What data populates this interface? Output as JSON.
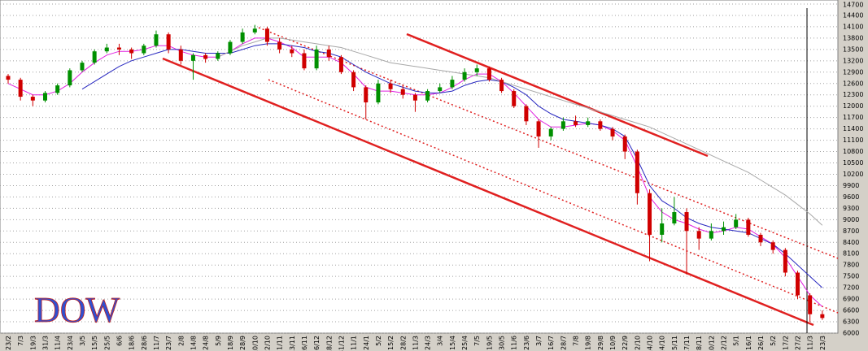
{
  "chart_data": {
    "type": "candlestick",
    "title": "DOW",
    "categories": [
      "23/2",
      "7/3",
      "19/3",
      "31/3",
      "11/4",
      "23/4",
      "3/5",
      "15/5",
      "25/5",
      "6/6",
      "18/6",
      "28/6",
      "11/7",
      "23/7",
      "2/8",
      "14/8",
      "24/8",
      "5/9",
      "18/9",
      "28/9",
      "10/10",
      "22/10",
      "1/11",
      "13/11",
      "26/11",
      "6/12",
      "18/12",
      "31/12",
      "11/1",
      "24/1",
      "5/2",
      "15/2",
      "28/2",
      "11/3",
      "24/3",
      "3/4",
      "15/4",
      "25/4",
      "7/5",
      "19/5",
      "30/5",
      "11/6",
      "23/6",
      "3/7",
      "16/7",
      "28/7",
      "7/8",
      "19/8",
      "29/8",
      "10/9",
      "22/9",
      "2/10",
      "14/10",
      "24/10",
      "5/11",
      "17/11",
      "28/11",
      "10/12",
      "22/12",
      "5/1",
      "16/1",
      "26/1",
      "5/2",
      "17/2",
      "27/2",
      "11/3",
      "23/3"
    ],
    "candles": [
      [
        12800,
        12850,
        12600,
        12700
      ],
      [
        12700,
        12750,
        12150,
        12250
      ],
      [
        12250,
        12300,
        12000,
        12150
      ],
      [
        12150,
        12400,
        12100,
        12350
      ],
      [
        12350,
        12600,
        12300,
        12550
      ],
      [
        12550,
        13000,
        12500,
        12950
      ],
      [
        12950,
        13200,
        12900,
        13150
      ],
      [
        13150,
        13500,
        13100,
        13450
      ],
      [
        13450,
        13650,
        13400,
        13550
      ],
      [
        13550,
        13650,
        13350,
        13500
      ],
      [
        13500,
        13550,
        13250,
        13400
      ],
      [
        13400,
        13650,
        13350,
        13600
      ],
      [
        13600,
        14000,
        13550,
        13900
      ],
      [
        13900,
        13950,
        13400,
        13500
      ],
      [
        13500,
        13600,
        13100,
        13200
      ],
      [
        13200,
        13400,
        12700,
        13350
      ],
      [
        13350,
        13400,
        13150,
        13250
      ],
      [
        13250,
        13450,
        13200,
        13400
      ],
      [
        13400,
        13750,
        13350,
        13700
      ],
      [
        13700,
        14050,
        13650,
        13950
      ],
      [
        13950,
        14150,
        13900,
        14050
      ],
      [
        14050,
        14100,
        13600,
        13700
      ],
      [
        13700,
        13800,
        13400,
        13500
      ],
      [
        13500,
        13600,
        13300,
        13400
      ],
      [
        13400,
        13500,
        12950,
        13000
      ],
      [
        13000,
        13600,
        12950,
        13500
      ],
      [
        13500,
        13600,
        13200,
        13300
      ],
      [
        13300,
        13350,
        12850,
        12900
      ],
      [
        12900,
        12950,
        12400,
        12500
      ],
      [
        12500,
        12550,
        11650,
        12100
      ],
      [
        12100,
        12700,
        12050,
        12600
      ],
      [
        12600,
        12700,
        12350,
        12450
      ],
      [
        12450,
        12550,
        12200,
        12300
      ],
      [
        12300,
        12350,
        11850,
        12150
      ],
      [
        12150,
        12450,
        12100,
        12400
      ],
      [
        12400,
        12600,
        12350,
        12500
      ],
      [
        12500,
        12800,
        12450,
        12700
      ],
      [
        12700,
        13000,
        12650,
        12900
      ],
      [
        12900,
        13100,
        12800,
        13000
      ],
      [
        13000,
        13050,
        12650,
        12700
      ],
      [
        12700,
        12750,
        12350,
        12400
      ],
      [
        12400,
        12450,
        11950,
        12000
      ],
      [
        12000,
        12050,
        11500,
        11600
      ],
      [
        11600,
        11650,
        10900,
        11200
      ],
      [
        11200,
        11450,
        11100,
        11400
      ],
      [
        11400,
        11700,
        11350,
        11600
      ],
      [
        11600,
        11750,
        11450,
        11500
      ],
      [
        11500,
        11700,
        11450,
        11600
      ],
      [
        11600,
        11650,
        11350,
        11400
      ],
      [
        11400,
        11450,
        11100,
        11200
      ],
      [
        11200,
        11250,
        10600,
        10800
      ],
      [
        10800,
        10850,
        9400,
        9700
      ],
      [
        9700,
        9800,
        7900,
        8600
      ],
      [
        8600,
        9300,
        8400,
        8900
      ],
      [
        8900,
        9600,
        8850,
        9200
      ],
      [
        9200,
        9300,
        7550,
        8700
      ],
      [
        8700,
        8800,
        8200,
        8500
      ],
      [
        8500,
        8900,
        8450,
        8700
      ],
      [
        8700,
        8950,
        8600,
        8800
      ],
      [
        8800,
        9150,
        8750,
        9000
      ],
      [
        9000,
        9050,
        8550,
        8600
      ],
      [
        8600,
        8650,
        8300,
        8400
      ],
      [
        8400,
        8450,
        8100,
        8200
      ],
      [
        8200,
        8250,
        7500,
        7600
      ],
      [
        7600,
        7650,
        6900,
        7000
      ],
      [
        7000,
        7050,
        6300,
        6500
      ],
      [
        6500,
        6600,
        6350,
        6400
      ]
    ],
    "up_color": "#009000",
    "down_color": "#d00000",
    "series": [
      {
        "color": "#e020e0",
        "values": [
          12600,
          12450,
          12300,
          12300,
          12400,
          12600,
          12900,
          13150,
          13350,
          13450,
          13450,
          13500,
          13600,
          13600,
          13450,
          13350,
          13300,
          13300,
          13450,
          13650,
          13800,
          13800,
          13700,
          13550,
          13300,
          13300,
          13300,
          13150,
          12850,
          12500,
          12400,
          12400,
          12350,
          12300,
          12300,
          12350,
          12500,
          12700,
          12850,
          12850,
          12650,
          12350,
          12000,
          11650,
          11450,
          11450,
          11500,
          11550,
          11500,
          11350,
          11100,
          10400,
          9600,
          9200,
          9000,
          8900,
          8750,
          8650,
          8700,
          8800,
          8750,
          8550,
          8350,
          8000,
          7500,
          7000,
          6700
        ]
      },
      {
        "color": "#2828c0",
        "values": [
          null,
          null,
          null,
          null,
          null,
          null,
          12450,
          12650,
          12850,
          13050,
          13200,
          13300,
          13400,
          13500,
          13500,
          13450,
          13400,
          13400,
          13400,
          13500,
          13600,
          13650,
          13650,
          13600,
          13550,
          13450,
          13400,
          13300,
          13100,
          12900,
          12750,
          12600,
          12500,
          12400,
          12350,
          12350,
          12400,
          12550,
          12650,
          12700,
          12650,
          12500,
          12300,
          12000,
          11800,
          11650,
          11600,
          11550,
          11500,
          11400,
          11200,
          10600,
          9900,
          9500,
          9300,
          9050,
          8900,
          8800,
          8750,
          8700,
          8650,
          8500,
          8350,
          8100,
          7800,
          7500,
          7200
        ]
      },
      {
        "color": "#a8a8a8",
        "values": [
          null,
          null,
          null,
          null,
          null,
          null,
          null,
          null,
          null,
          null,
          null,
          null,
          null,
          null,
          null,
          null,
          null,
          13300,
          13450,
          13600,
          13700,
          13800,
          13800,
          13750,
          13700,
          13650,
          13600,
          13550,
          13450,
          13350,
          13250,
          13150,
          13100,
          13050,
          13000,
          12950,
          12900,
          12850,
          12800,
          12750,
          12650,
          12550,
          12450,
          12350,
          12250,
          12150,
          12050,
          11950,
          11850,
          11750,
          11650,
          11550,
          11450,
          11300,
          11150,
          11000,
          10850,
          10700,
          10550,
          10400,
          10250,
          10050,
          9850,
          9650,
          9400,
          9150,
          8850
        ]
      }
    ],
    "ylim": [
      6000,
      14700
    ],
    "yticks": [
      6000,
      6300,
      6600,
      6900,
      7200,
      7500,
      7800,
      8100,
      8400,
      8700,
      9000,
      9300,
      9600,
      9900,
      10200,
      10500,
      10800,
      11100,
      11400,
      11700,
      12000,
      12300,
      12600,
      12900,
      13200,
      13500,
      13800,
      14100,
      14400,
      14700
    ],
    "grid": true
  }
}
